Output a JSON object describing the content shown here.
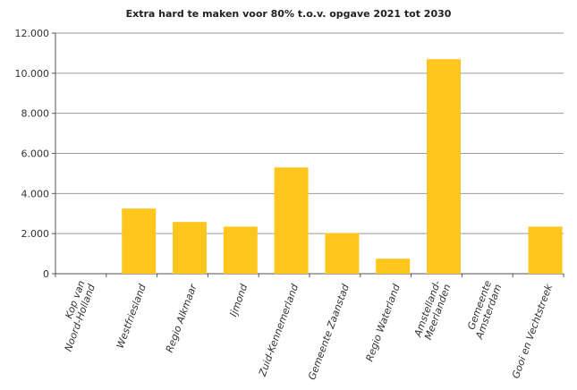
{
  "chart_data": {
    "type": "bar",
    "title": "Extra hard te maken voor 80% t.o.v. opgave 2021 tot 2030",
    "categories": [
      [
        "Kop van",
        "Noord-Holland"
      ],
      [
        "Westfriesland"
      ],
      [
        "Regio Alkmaar"
      ],
      [
        "Ijmond"
      ],
      [
        "Zuid-Kennemerland"
      ],
      [
        "Gemeente Zaanstad"
      ],
      [
        "Regio Waterland"
      ],
      [
        "Amstelland-",
        "Meerlanden"
      ],
      [
        "Gemeente",
        "Amsterdam"
      ],
      [
        "Gooi en Vechtstreek"
      ]
    ],
    "values": [
      0,
      3250,
      2580,
      2350,
      5300,
      2030,
      750,
      10700,
      0,
      2350
    ],
    "xlabel": "",
    "ylabel": "",
    "ylim": [
      0,
      12000
    ],
    "yticks": [
      0,
      2000,
      4000,
      6000,
      8000,
      10000,
      12000
    ],
    "ytick_labels": [
      "0",
      "2.000",
      "4.000",
      "6.000",
      "8.000",
      "10.000",
      "12.000"
    ],
    "grid": true,
    "legend": "none",
    "colors": {
      "bar": "#FFC61E",
      "grid": "#9a9a9a",
      "axis": "#555555"
    }
  }
}
